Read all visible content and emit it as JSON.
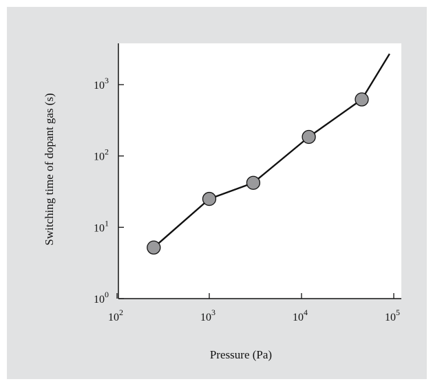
{
  "chart_data": {
    "type": "line",
    "x_scale": "log",
    "y_scale": "log",
    "xlabel": "Pressure (Pa)",
    "ylabel": "Switching time of dopant gas (s)",
    "xlim": [
      100,
      100000
    ],
    "ylim": [
      1,
      3500
    ],
    "x_ticks": [
      {
        "value": 100,
        "base": "10",
        "exp": "2"
      },
      {
        "value": 1000,
        "base": "10",
        "exp": "3"
      },
      {
        "value": 10000,
        "base": "10",
        "exp": "4"
      },
      {
        "value": 100000,
        "base": "10",
        "exp": "5"
      }
    ],
    "y_ticks": [
      {
        "value": 1,
        "base": "10",
        "exp": "0"
      },
      {
        "value": 10,
        "base": "10",
        "exp": "1"
      },
      {
        "value": 100,
        "base": "10",
        "exp": "2"
      },
      {
        "value": 1000,
        "base": "10",
        "exp": "3"
      }
    ],
    "series": [
      {
        "points": [
          {
            "x": 250,
            "y": 5.2,
            "marker": true
          },
          {
            "x": 1000,
            "y": 25,
            "marker": true
          },
          {
            "x": 3000,
            "y": 42,
            "marker": true
          },
          {
            "x": 12000,
            "y": 185,
            "marker": true
          },
          {
            "x": 45000,
            "y": 620,
            "marker": true
          },
          {
            "x": 90000,
            "y": 2700,
            "marker": false
          }
        ]
      }
    ],
    "grid": false,
    "colors": {
      "background": "#e1e2e3",
      "plot_area": "#ffffff",
      "line": "#111111",
      "marker_fill": "#9a9a9c",
      "marker_edge": "#111111"
    }
  }
}
